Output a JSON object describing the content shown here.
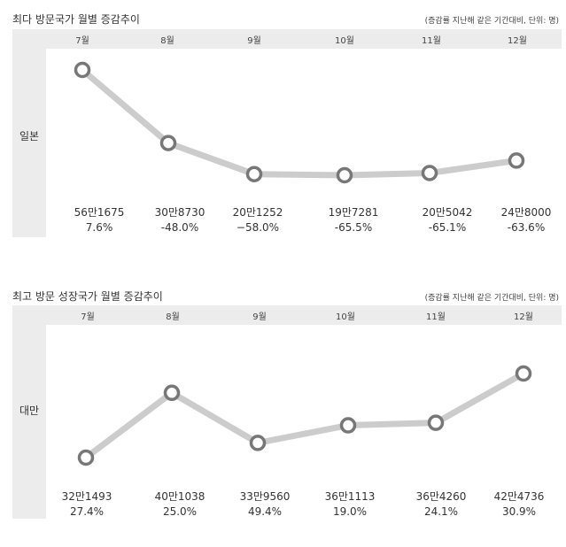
{
  "chart_data": [
    {
      "type": "line",
      "title": "최다 방문국가 월별 증감추이",
      "note": "(증감률 지난해 같은 기간대비, 단위: 명)",
      "country": "일본",
      "categories": [
        "7월",
        "8월",
        "9월",
        "10월",
        "11월",
        "12월"
      ],
      "values": [
        561675,
        308730,
        201252,
        197281,
        205042,
        248000
      ],
      "value_labels": [
        "56만1675",
        "30만8730",
        "20만1252",
        "19만7281",
        "20만5042",
        "24만8000"
      ],
      "change_pct": [
        7.6,
        -48.0,
        -58.0,
        -65.5,
        -65.1,
        -63.6
      ],
      "change_labels": [
        "7.6%",
        "-48.0%",
        "−58.0%",
        "-65.5%",
        "-65.1%",
        "-63.6%"
      ],
      "colors": {
        "line": "#cccccc",
        "marker_stroke": "#777777",
        "marker_fill": "#ffffff",
        "band": "#ececec"
      }
    },
    {
      "type": "line",
      "title": "최고 방문 성장국가 월별 증감추이",
      "note": "(증감률 지난해 같은 기간대비, 단위: 명)",
      "country": "대만",
      "categories": [
        "7월",
        "8월",
        "9월",
        "10월",
        "11월",
        "12월"
      ],
      "values": [
        321493,
        401038,
        339560,
        361113,
        364260,
        424736
      ],
      "value_labels": [
        "32만1493",
        "40만1038",
        "33만9560",
        "36만1113",
        "36만4260",
        "42만4736"
      ],
      "change_pct": [
        27.4,
        25.0,
        49.4,
        19.0,
        24.1,
        30.9
      ],
      "change_labels": [
        "27.4%",
        "25.0%",
        "49.4%",
        "19.0%",
        "24.1%",
        "30.9%"
      ],
      "colors": {
        "line": "#cccccc",
        "marker_stroke": "#777777",
        "marker_fill": "#ffffff",
        "band": "#ececec"
      }
    }
  ]
}
